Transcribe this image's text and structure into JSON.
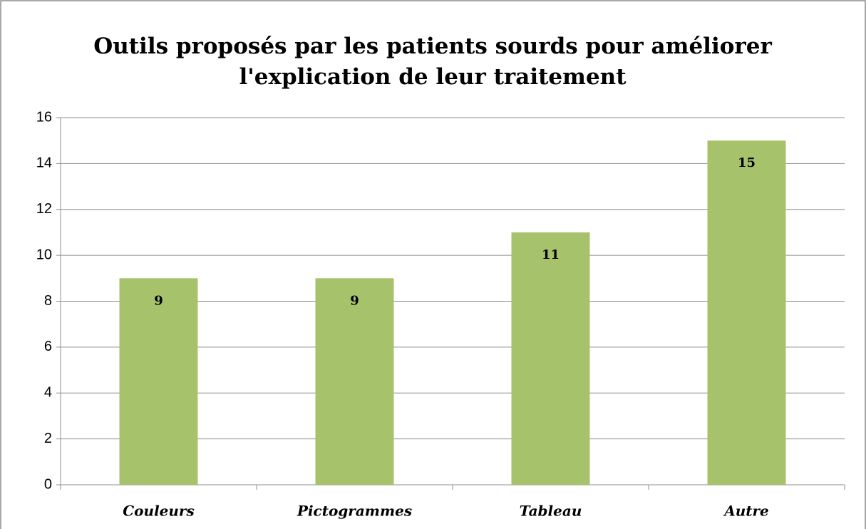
{
  "chart_data": {
    "type": "bar",
    "title": "Outils proposés par les patients sourds pour améliorer l'explication de leur traitement",
    "categories": [
      "Couleurs",
      "Pictogrammes",
      "Tableau",
      "Autre"
    ],
    "values": [
      9,
      9,
      11,
      15
    ],
    "color": "#a6c36b",
    "ylim": [
      0,
      16
    ],
    "yticks": [
      0,
      2,
      4,
      6,
      8,
      10,
      12,
      14,
      16
    ],
    "grid": true,
    "data_labels": true
  }
}
